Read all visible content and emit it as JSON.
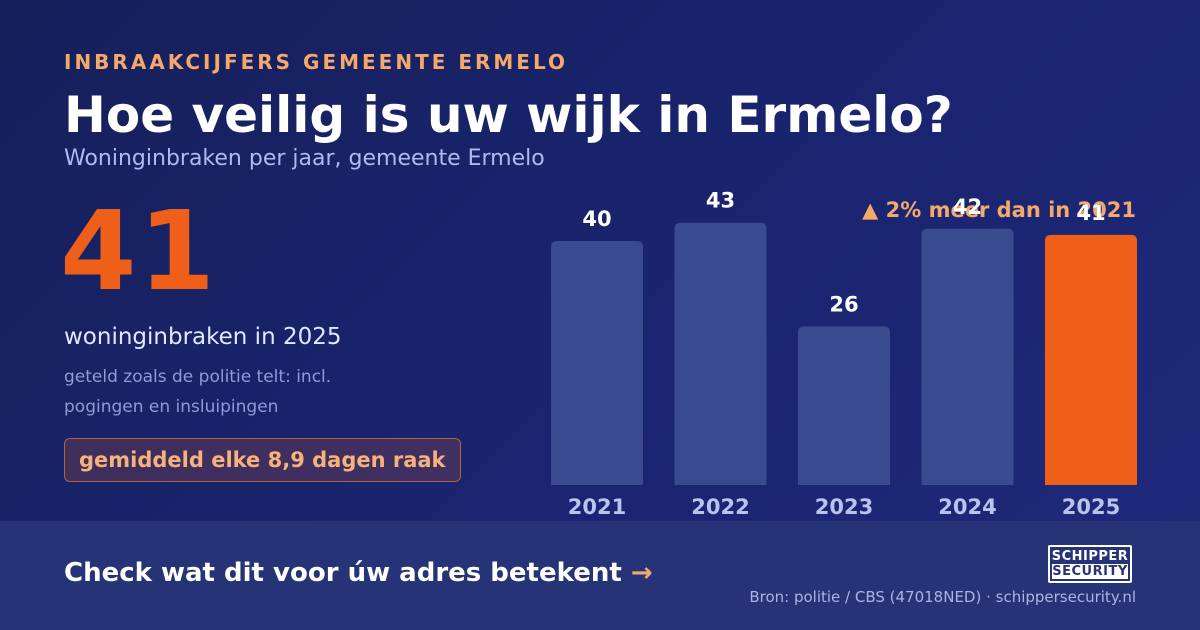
{
  "header": {
    "kicker": "INBRAAKCIJFERS GEMEENTE ERMELO",
    "title": "Hoe veilig is uw wijk in Ermelo?",
    "subtitle": "Woninginbraken per jaar, gemeente Ermelo"
  },
  "highlight": {
    "number": "41",
    "caption": "woninginbraken in 2025",
    "note": "geteld zoals de politie telt: incl. pogingen en insluipingen",
    "badge": "gemiddeld elke 8,9 dagen raak",
    "trend": "▲ 2% meer dan in 2021"
  },
  "footer": {
    "cta": "Check wat dit voor úw adres betekent",
    "cta_arrow": "→",
    "logo_line1": "SCHIPPER",
    "logo_line2": "SECURITY",
    "source": "Bron: politie / CBS (47018NED) · schippersecurity.nl"
  },
  "colors": {
    "background": "#1a2470",
    "bar": "#3a4a8f",
    "bar_highlight": "#ee5f1a",
    "accent": "#f4a96a",
    "footer": "#273377"
  },
  "chart_data": {
    "type": "bar",
    "categories": [
      "2021",
      "2022",
      "2023",
      "2024",
      "2025"
    ],
    "values": [
      40,
      43,
      26,
      42,
      41
    ],
    "highlight_index": 4,
    "ylim": [
      0,
      50
    ],
    "grid": false,
    "legend": "none"
  }
}
